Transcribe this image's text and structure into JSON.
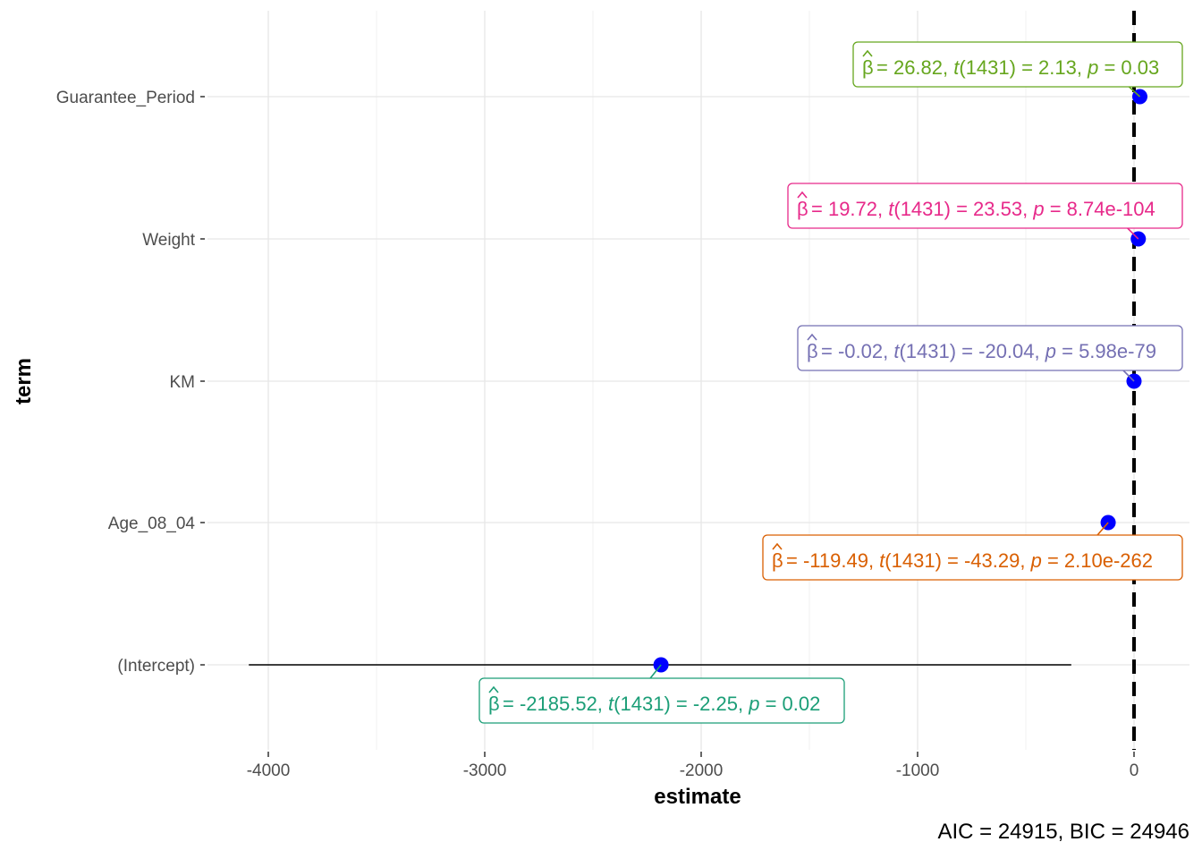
{
  "chart_data": {
    "type": "scatter",
    "subtype": "coefficient-plot",
    "xlabel": "estimate",
    "ylabel": "term",
    "xlim": [
      -4100,
      250
    ],
    "x_ticks": [
      -4000,
      -3000,
      -2000,
      -1000,
      0
    ],
    "x_tick_labels": [
      "-4000",
      "-3000",
      "-2000",
      "-1000",
      "0"
    ],
    "reference_line": {
      "x": 0,
      "style": "dashed",
      "color": "#000000"
    },
    "grid": true,
    "point_color": "#0000ff",
    "terms": [
      {
        "term": "Guarantee_Period",
        "estimate": 26.82,
        "ci": [
          2.1,
          51.5
        ],
        "color": "#66a61e",
        "label": {
          "beta": "26.82",
          "df": "1431",
          "t": "2.13",
          "p": "0.03"
        }
      },
      {
        "term": "Weight",
        "estimate": 19.72,
        "ci": [
          18.1,
          21.4
        ],
        "color": "#e7298a",
        "label": {
          "beta": "19.72",
          "df": "1431",
          "t": "23.53",
          "p": "8.74e-104"
        }
      },
      {
        "term": "KM",
        "estimate": -0.02,
        "ci": [
          -0.02,
          -0.02
        ],
        "color": "#7570b3",
        "label": {
          "beta": "-0.02",
          "df": "1431",
          "t": "-20.04",
          "p": "5.98e-79"
        }
      },
      {
        "term": "Age_08_04",
        "estimate": -119.49,
        "ci": [
          -124.9,
          -114.1
        ],
        "color": "#d95f02",
        "label": {
          "beta": "-119.49",
          "df": "1431",
          "t": "-43.29",
          "p": "2.10e-262"
        }
      },
      {
        "term": "(Intercept)",
        "estimate": -2185.52,
        "ci": [
          -4090,
          -290
        ],
        "color": "#1b9e77",
        "label": {
          "beta": "-2185.52",
          "df": "1431",
          "t": "-2.25",
          "p": "0.02"
        }
      }
    ],
    "caption": {
      "aic": "24915",
      "bic": "24946"
    }
  }
}
